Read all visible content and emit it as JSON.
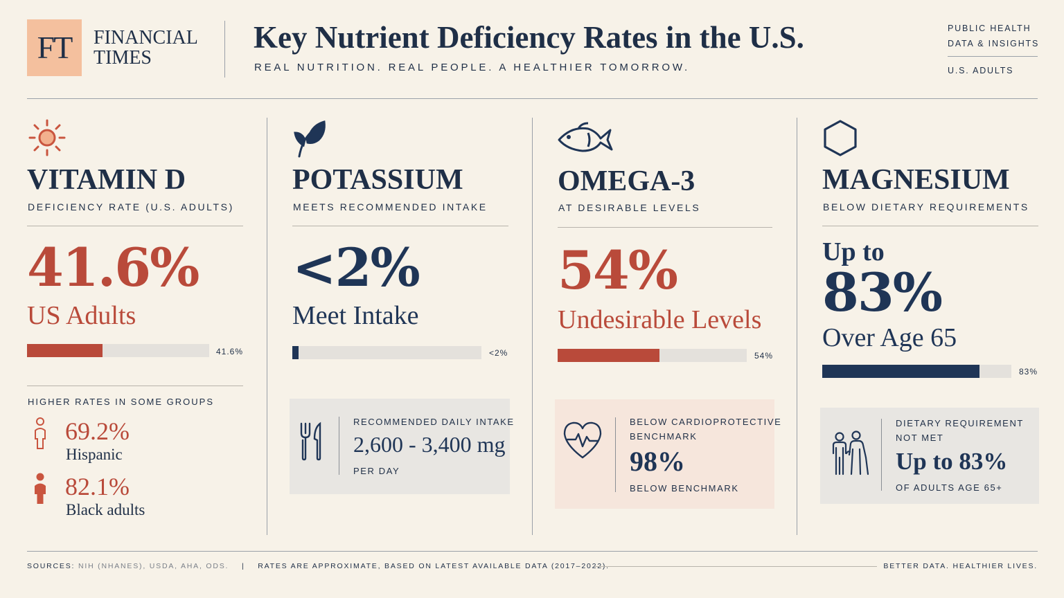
{
  "brand": {
    "logo_letters": "FT",
    "name_line1": "FINANCIAL",
    "name_line2": "TIMES"
  },
  "header": {
    "title": "Key Nutrient Deficiency Rates in the U.S.",
    "subtitle": "REAL NUTRITION. REAL PEOPLE. A HEALTHIER TOMORROW.",
    "meta_line1": "PUBLIC HEALTH",
    "meta_line2": "DATA & INSIGHTS",
    "meta_line3": "U.S. ADULTS"
  },
  "columns": [
    {
      "icon": "sun-icon",
      "title": "VITAMIN D",
      "subtitle": "DEFICIENCY RATE (U.S. ADULTS)",
      "big_value": "41.6%",
      "big_label": "US Adults",
      "bar_value_text": "41.6%",
      "bar_fraction": 0.416,
      "color": "#b94a3a",
      "groups_heading": "HIGHER RATES IN SOME GROUPS",
      "groups": [
        {
          "icon": "person-outline-icon",
          "value": "69.2%",
          "label": "Hispanic"
        },
        {
          "icon": "person-filled-icon",
          "value": "82.1%",
          "label": "Black adults"
        }
      ]
    },
    {
      "icon": "leaf-icon",
      "title": "POTASSIUM",
      "subtitle": "MEETS RECOMMENDED INTAKE",
      "big_value": "<2%",
      "big_label": "Meet Intake",
      "bar_value_text": "<2%",
      "bar_fraction": 0.02,
      "color": "#1f3556",
      "box": {
        "icon": "fork-knife-icon",
        "line1": "RECOMMENDED DAILY INTAKE",
        "big": "2,600 - 3,400 mg",
        "line2": "PER DAY",
        "background": "#e8e6e2"
      }
    },
    {
      "icon": "fish-icon",
      "title": "OMEGA-3",
      "subtitle": "AT DESIRABLE LEVELS",
      "big_value": "54%",
      "big_label": "Undesirable Levels",
      "bar_value_text": "54%",
      "bar_fraction": 0.54,
      "color": "#b94a3a",
      "box": {
        "icon": "heart-pulse-icon",
        "line1": "BELOW CARDIOPROTECTIVE",
        "line1b": "BENCHMARK",
        "big": "98%",
        "line2": "BELOW BENCHMARK",
        "background": "#f6e6dc"
      }
    },
    {
      "icon": "hexagon-icon",
      "title": "MAGNESIUM",
      "subtitle": "BELOW DIETARY REQUIREMENTS",
      "pre_label": "Up to",
      "big_value": "83%",
      "big_label": "Over Age 65",
      "bar_value_text": "83%",
      "bar_fraction": 0.83,
      "color": "#1f3556",
      "box": {
        "icon": "elderly-couple-icon",
        "line1": "DIETARY REQUIREMENT",
        "line1b": "NOT MET",
        "big": "Up to 83%",
        "line2": "OF ADULTS AGE 65+",
        "background": "#e8e6e2"
      }
    }
  ],
  "footer": {
    "sources_label": "SOURCES:",
    "sources": "NIH (NHANES), USDA, AHA, ODS.",
    "separator": "|",
    "note": "RATES ARE APPROXIMATE, BASED ON LATEST AVAILABLE DATA (2017–2022).",
    "tagline": "BETTER DATA. HEALTHIER LIVES."
  }
}
